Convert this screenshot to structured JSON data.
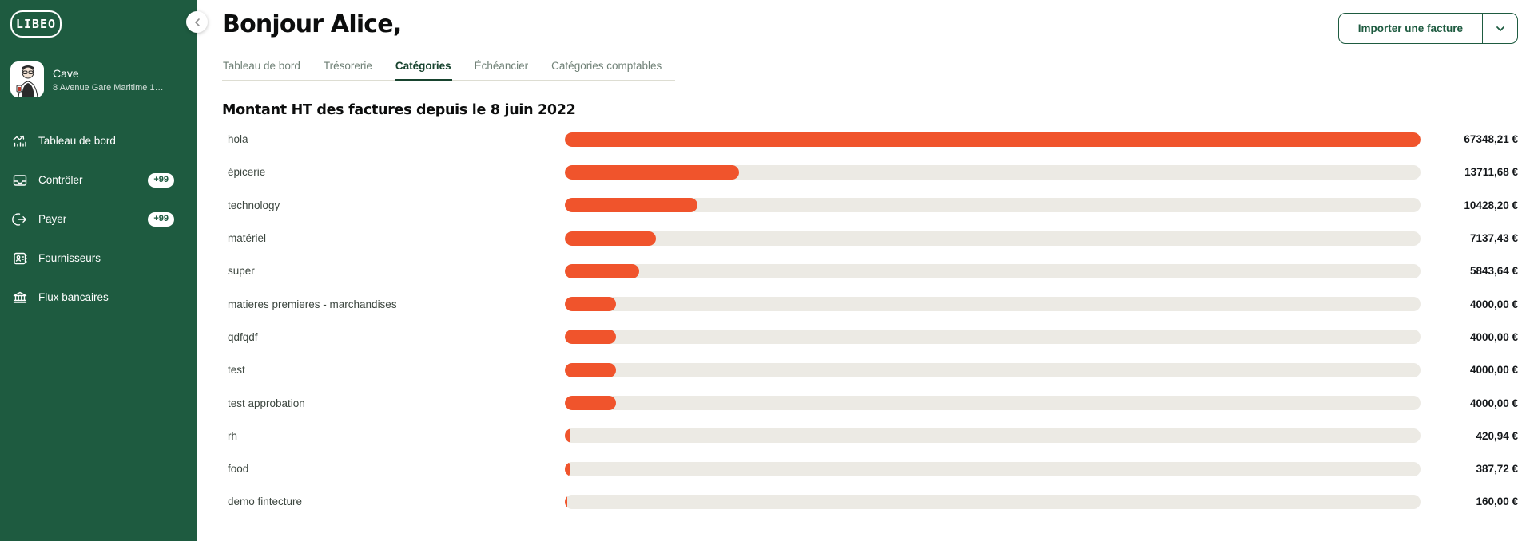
{
  "colors": {
    "sidebar_green": "#1E5B40",
    "bar_orange": "#F0542C",
    "bar_track": "#ECEAE4",
    "tab_active_green": "#17432E"
  },
  "sidebar": {
    "logo_text": "LIBEO",
    "user": {
      "name": "Cave",
      "address": "8 Avenue Gare Maritime 1…"
    },
    "items": [
      {
        "label": "Tableau de bord",
        "icon": "chart-icon",
        "badge": null
      },
      {
        "label": "Contrôler",
        "icon": "inbox-icon",
        "badge": "+99"
      },
      {
        "label": "Payer",
        "icon": "send-icon",
        "badge": "+99"
      },
      {
        "label": "Fournisseurs",
        "icon": "contact-card-icon",
        "badge": null
      },
      {
        "label": "Flux bancaires",
        "icon": "bank-icon",
        "badge": null
      }
    ]
  },
  "header": {
    "greeting": "Bonjour Alice,",
    "import_button_label": "Importer une facture",
    "tabs": [
      {
        "label": "Tableau de bord",
        "active": false
      },
      {
        "label": "Trésorerie",
        "active": false
      },
      {
        "label": "Catégories",
        "active": true
      },
      {
        "label": "Échéancier",
        "active": false
      },
      {
        "label": "Catégories comptables",
        "active": false
      }
    ]
  },
  "chart_data": {
    "type": "bar",
    "orientation": "horizontal",
    "title": "Montant HT des factures depuis le 8 juin 2022",
    "categories": [
      "hola",
      "épicerie",
      "technology",
      "matériel",
      "super",
      "matieres premieres - marchandises",
      "qdfqdf",
      "test",
      "test approbation",
      "rh",
      "food",
      "demo fintecture"
    ],
    "values": [
      67348.21,
      13711.68,
      10428.2,
      7137.43,
      5843.64,
      4000.0,
      4000.0,
      4000.0,
      4000.0,
      420.94,
      387.72,
      160.0
    ],
    "value_labels": [
      "67348,21 €",
      "13711,68 €",
      "10428,20 €",
      "7137,43 €",
      "5843,64 €",
      "4000,00 €",
      "4000,00 €",
      "4000,00 €",
      "4000,00 €",
      "420,94 €",
      "387,72 €",
      "160,00 €"
    ],
    "xlim": [
      0,
      67348.21
    ],
    "unit": "€",
    "legend": null,
    "grid": false,
    "bar_color": "#F0542C",
    "track_color": "#ECEAE4"
  }
}
